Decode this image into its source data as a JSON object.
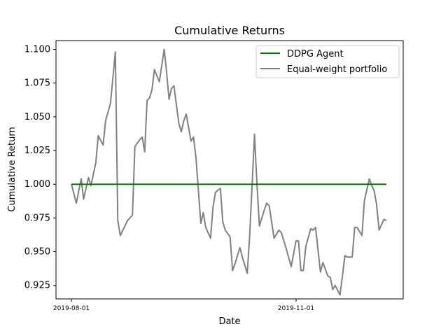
{
  "chart_data": {
    "type": "line",
    "title": "Cumulative Returns",
    "xlabel": "Date",
    "ylabel": "Cumulative Return",
    "x_range": [
      "2019-08-01",
      "2019-12-08"
    ],
    "ylim": [
      0.915,
      1.1065
    ],
    "grid": false,
    "legend_position": "top-right",
    "x_ticks": [
      {
        "value": "2019-08-01",
        "label": "2019-08-01"
      },
      {
        "value": "2019-11-01",
        "label": "2019-11-01"
      }
    ],
    "y_ticks": [
      {
        "value": 0.925,
        "label": "0.925"
      },
      {
        "value": 0.95,
        "label": "0.950"
      },
      {
        "value": 0.975,
        "label": "0.975"
      },
      {
        "value": 1.0,
        "label": "1.000"
      },
      {
        "value": 1.025,
        "label": "1.025"
      },
      {
        "value": 1.05,
        "label": "1.050"
      },
      {
        "value": 1.075,
        "label": "1.075"
      },
      {
        "value": 1.1,
        "label": "1.100"
      }
    ],
    "series": [
      {
        "name": "DDPG Agent",
        "color": "#008000",
        "dates": [
          "2019-08-01",
          "2019-12-08"
        ],
        "values": [
          1.0,
          1.0
        ]
      },
      {
        "name": "Equal-weight portfolio",
        "color": "#808080",
        "dates": [
          "2019-08-01",
          "2019-08-03",
          "2019-08-05",
          "2019-08-06",
          "2019-08-08",
          "2019-08-09",
          "2019-08-11",
          "2019-08-12",
          "2019-08-14",
          "2019-08-15",
          "2019-08-17",
          "2019-08-19",
          "2019-08-20",
          "2019-08-21",
          "2019-08-24",
          "2019-08-26",
          "2019-08-27",
          "2019-08-29",
          "2019-08-30",
          "2019-08-31",
          "2019-09-01",
          "2019-09-02",
          "2019-09-03",
          "2019-09-04",
          "2019-09-06",
          "2019-09-08",
          "2019-09-09",
          "2019-09-10",
          "2019-09-11",
          "2019-09-12",
          "2019-09-14",
          "2019-09-15",
          "2019-09-16",
          "2019-09-17",
          "2019-09-19",
          "2019-09-20",
          "2019-09-21",
          "2019-09-23",
          "2019-09-24",
          "2019-09-25",
          "2019-09-27",
          "2019-09-28",
          "2019-09-29",
          "2019-10-01",
          "2019-10-02",
          "2019-10-03",
          "2019-10-05",
          "2019-10-06",
          "2019-10-07",
          "2019-10-09",
          "2019-10-10",
          "2019-10-12",
          "2019-10-13",
          "2019-10-15",
          "2019-10-16",
          "2019-10-17",
          "2019-10-19",
          "2019-10-20",
          "2019-10-21",
          "2019-10-23",
          "2019-10-25",
          "2019-10-26",
          "2019-10-28",
          "2019-10-30",
          "2019-11-01",
          "2019-11-02",
          "2019-11-03",
          "2019-11-04",
          "2019-11-05",
          "2019-11-07",
          "2019-11-08",
          "2019-11-09",
          "2019-11-11",
          "2019-11-12",
          "2019-11-14",
          "2019-11-15",
          "2019-11-16",
          "2019-11-17",
          "2019-11-19",
          "2019-11-20",
          "2019-11-21",
          "2019-11-22",
          "2019-11-24",
          "2019-11-25",
          "2019-11-26",
          "2019-11-28",
          "2019-11-29",
          "2019-11-30",
          "2019-12-01",
          "2019-12-02",
          "2019-12-03",
          "2019-12-04",
          "2019-12-05",
          "2019-12-07",
          "2019-12-08"
        ],
        "values": [
          1.0,
          0.986,
          1.004,
          0.989,
          1.005,
          0.999,
          1.016,
          1.036,
          1.029,
          1.047,
          1.06,
          1.098,
          0.973,
          0.962,
          0.973,
          0.977,
          1.028,
          1.033,
          1.035,
          1.024,
          1.062,
          1.064,
          1.07,
          1.085,
          1.076,
          1.1,
          1.083,
          1.063,
          1.071,
          1.073,
          1.045,
          1.039,
          1.047,
          1.052,
          1.032,
          1.035,
          1.02,
          0.971,
          0.979,
          0.968,
          0.96,
          0.983,
          0.994,
          0.997,
          0.972,
          0.966,
          0.961,
          0.936,
          0.941,
          0.953,
          0.946,
          0.934,
          0.962,
          1.037,
          1.0,
          0.969,
          0.981,
          0.986,
          0.984,
          0.96,
          0.966,
          0.964,
          0.952,
          0.939,
          0.958,
          0.958,
          0.936,
          0.936,
          0.954,
          0.967,
          0.966,
          0.968,
          0.935,
          0.942,
          0.932,
          0.931,
          0.922,
          0.925,
          0.918,
          0.932,
          0.947,
          0.946,
          0.946,
          0.968,
          0.968,
          0.962,
          0.988,
          0.996,
          1.004,
          0.999,
          0.995,
          0.985,
          0.966,
          0.974,
          0.973
        ]
      }
    ]
  }
}
